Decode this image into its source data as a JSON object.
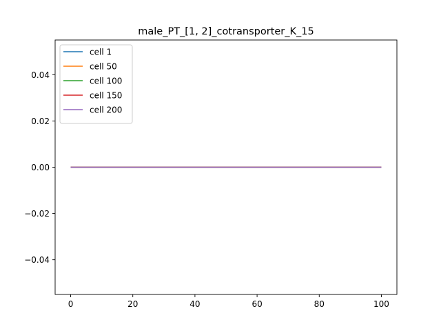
{
  "chart_data": {
    "type": "line",
    "title": "male_PT_[1, 2]_cotransporter_K_15",
    "xlabel": "",
    "ylabel": "",
    "xlim": [
      -5,
      105
    ],
    "ylim": [
      -0.055,
      0.055
    ],
    "x_ticks": [
      0,
      20,
      40,
      60,
      80,
      100
    ],
    "x_tick_labels": [
      "0",
      "20",
      "40",
      "60",
      "80",
      "100"
    ],
    "y_ticks": [
      -0.04,
      -0.02,
      0.0,
      0.02,
      0.04
    ],
    "y_tick_labels": [
      "−0.04",
      "−0.02",
      "0.00",
      "0.02",
      "0.04"
    ],
    "grid": false,
    "legend_position": "upper-left",
    "x": [
      0,
      100
    ],
    "series": [
      {
        "name": "cell 1",
        "color": "#1f77b4",
        "values": [
          0,
          0
        ]
      },
      {
        "name": "cell 50",
        "color": "#ff7f0e",
        "values": [
          0,
          0
        ]
      },
      {
        "name": "cell 100",
        "color": "#2ca02c",
        "values": [
          0,
          0
        ]
      },
      {
        "name": "cell 150",
        "color": "#d62728",
        "values": [
          0,
          0
        ]
      },
      {
        "name": "cell 200",
        "color": "#9467bd",
        "values": [
          0,
          0
        ]
      }
    ]
  }
}
